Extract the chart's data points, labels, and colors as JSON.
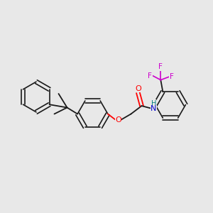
{
  "background_color": "#e8e8e8",
  "bond_color": "#1a1a1a",
  "atom_colors": {
    "O": "#ff0000",
    "N": "#0000cc",
    "F": "#cc00cc",
    "H_on_N": "#008080"
  },
  "figsize": [
    3.0,
    3.0
  ],
  "dpi": 100
}
